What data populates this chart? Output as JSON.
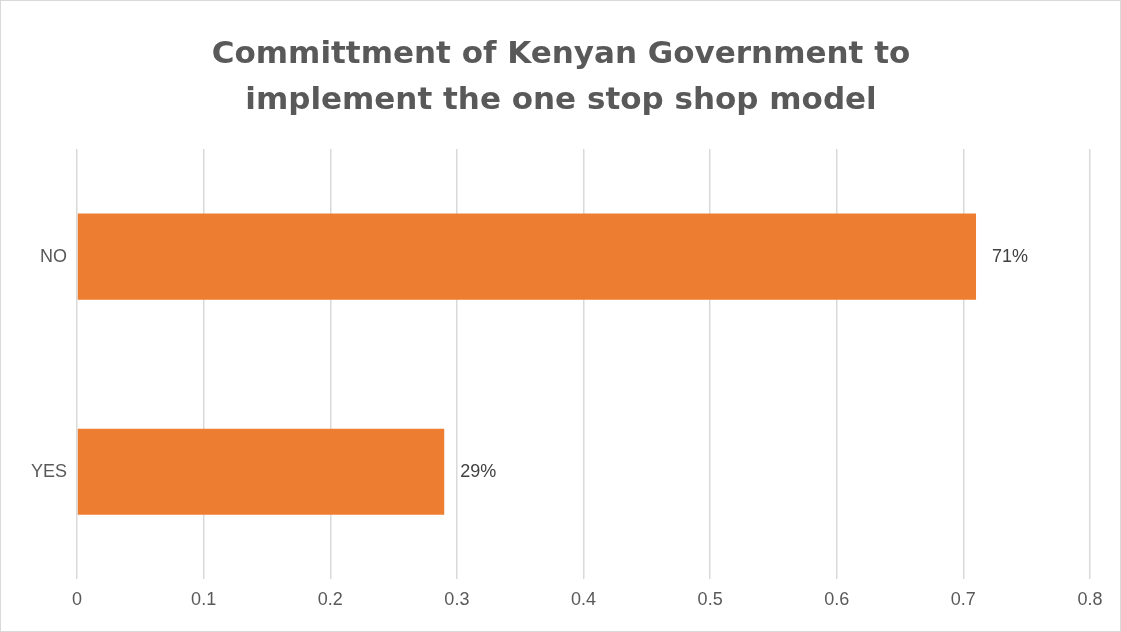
{
  "chart_data": {
    "type": "bar",
    "orientation": "horizontal",
    "title": "Committment of Kenyan Government to implement the one stop shop model",
    "categories": [
      "NO",
      "YES"
    ],
    "values": [
      0.71,
      0.29
    ],
    "value_labels": [
      "71%",
      "29%"
    ],
    "color": "#ed7d31",
    "xlim": [
      0,
      0.8
    ],
    "xticks": [
      0,
      0.1,
      0.2,
      0.3,
      0.4,
      0.5,
      0.6,
      0.7,
      0.8
    ],
    "grid": "x",
    "legend": false
  }
}
